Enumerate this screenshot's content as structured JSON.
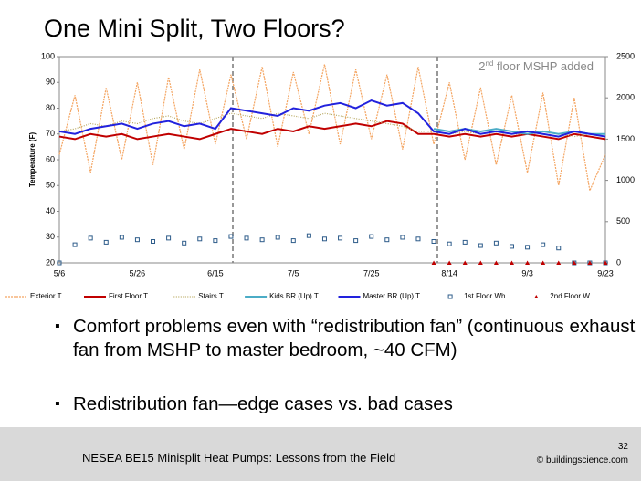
{
  "slide": {
    "title": "One Mini Split, Two Floors?",
    "bullets": [
      "Comfort problems even with “redistribution fan” (continuous exhaust fan from MSHP to master bedroom, ~40 CFM)",
      "Redistribution fan—edge cases vs. bad cases"
    ],
    "footer": "NESEA BE15 Minisplit Heat Pumps: Lessons from the Field",
    "page": "32",
    "credit": "© buildingscience.com"
  },
  "chart_data": {
    "type": "line",
    "annotation": [
      "2",
      "nd",
      " floor MSHP added"
    ],
    "y_label": "Temperature (F)",
    "categories": [
      "5/6",
      null,
      null,
      null,
      null,
      "5/26",
      null,
      null,
      null,
      null,
      "6/15",
      null,
      null,
      null,
      null,
      "7/5",
      null,
      null,
      null,
      null,
      "7/25",
      null,
      null,
      null,
      null,
      "8/14",
      null,
      null,
      null,
      null,
      "9/3",
      null,
      null,
      null,
      null,
      "9/23"
    ],
    "ylim": [
      20,
      100
    ],
    "yticks": [
      20,
      30,
      40,
      50,
      60,
      70,
      80,
      90,
      100
    ],
    "y2lim": [
      0,
      2500
    ],
    "y2ticks": [
      0,
      500,
      1000,
      1500,
      2000,
      2500
    ],
    "series": [
      {
        "name": "Exterior T",
        "type": "line",
        "style": "dashed",
        "color": "#f4a460",
        "values": [
          62,
          85,
          55,
          88,
          60,
          90,
          58,
          92,
          64,
          95,
          66,
          93,
          68,
          96,
          65,
          94,
          70,
          97,
          66,
          95,
          68,
          93,
          64,
          96,
          66,
          90,
          60,
          88,
          58,
          85,
          55,
          86,
          50,
          84,
          48,
          62
        ]
      },
      {
        "name": "First Floor T",
        "type": "line",
        "style": "solid",
        "color": "#c00000",
        "values": [
          69,
          68,
          70,
          69,
          70,
          68,
          69,
          70,
          69,
          68,
          70,
          72,
          71,
          70,
          72,
          71,
          73,
          72,
          73,
          74,
          73,
          75,
          74,
          70,
          70,
          69,
          70,
          69,
          70,
          69,
          70,
          69,
          68,
          70,
          69,
          68
        ]
      },
      {
        "name": "Stairs T",
        "type": "line",
        "style": "dotted",
        "color": "#b8a860",
        "values": [
          71,
          72,
          74,
          73,
          75,
          74,
          76,
          77,
          75,
          74,
          76,
          78,
          77,
          76,
          78,
          77,
          76,
          78,
          77,
          76,
          75,
          74,
          73,
          71,
          71,
          70,
          71,
          70,
          71,
          70,
          70,
          71,
          70,
          69,
          70,
          69
        ]
      },
      {
        "name": "Kids BR (Up) T",
        "type": "line",
        "style": "solid",
        "color": "#4bacc6",
        "values": [
          null,
          null,
          null,
          null,
          null,
          null,
          null,
          null,
          null,
          null,
          null,
          null,
          null,
          null,
          null,
          null,
          null,
          null,
          null,
          null,
          null,
          null,
          null,
          null,
          72,
          71,
          72,
          71,
          72,
          71,
          70,
          71,
          70,
          71,
          70,
          70
        ]
      },
      {
        "name": "Master BR (Up) T",
        "type": "line",
        "style": "solid",
        "color": "#2222dd",
        "values": [
          71,
          70,
          72,
          73,
          74,
          72,
          74,
          75,
          73,
          74,
          72,
          80,
          79,
          78,
          77,
          80,
          79,
          81,
          82,
          80,
          83,
          81,
          82,
          78,
          71,
          70,
          72,
          70,
          71,
          70,
          71,
          70,
          69,
          71,
          70,
          69
        ]
      },
      {
        "name": "1st Floor Wh",
        "type": "scatter",
        "marker": "square",
        "axis": "y2",
        "color": "#2e5c8a",
        "values": [
          0,
          220,
          300,
          250,
          310,
          280,
          260,
          300,
          240,
          290,
          270,
          320,
          300,
          280,
          310,
          270,
          330,
          290,
          300,
          270,
          320,
          280,
          310,
          290,
          260,
          230,
          250,
          210,
          240,
          200,
          190,
          220,
          180,
          0,
          0,
          0
        ]
      },
      {
        "name": "2nd Floor W",
        "type": "scatter",
        "marker": "triangle",
        "axis": "y2",
        "color": "#c00000",
        "values": [
          null,
          null,
          null,
          null,
          null,
          null,
          null,
          null,
          null,
          null,
          null,
          null,
          null,
          null,
          null,
          null,
          null,
          null,
          null,
          null,
          null,
          null,
          null,
          null,
          0,
          0,
          0,
          0,
          0,
          0,
          0,
          0,
          0,
          0,
          0,
          0
        ]
      }
    ]
  }
}
